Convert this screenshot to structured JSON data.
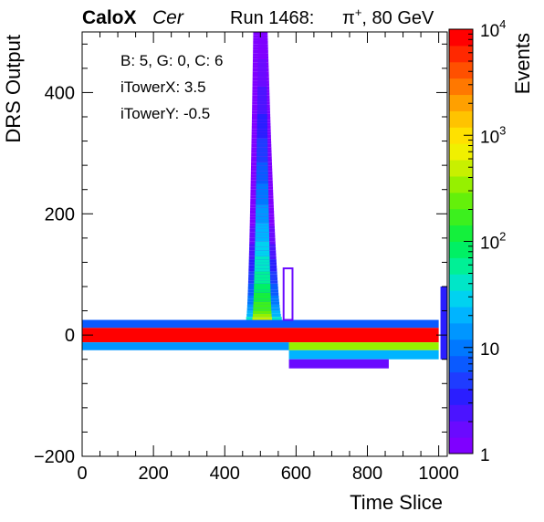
{
  "header": {
    "brand": "CaloX",
    "channel": "Cer",
    "run": "Run 1468:",
    "beam_particle": "π",
    "beam_charge": "+",
    "beam_energy": ", 80 GeV"
  },
  "annotations": [
    "B: 5, G: 0, C: 6",
    "iTowerX: 3.5",
    "iTowerY: -0.5"
  ],
  "chart_data": {
    "type": "heatmap",
    "xlabel": "Time Slice",
    "ylabel": "DRS Output",
    "zlabel": "Events",
    "xlim": [
      0,
      1024
    ],
    "ylim": [
      -200,
      500
    ],
    "x_ticks": [
      0,
      200,
      400,
      600,
      800,
      1000
    ],
    "x_tick_labels": [
      "0",
      "200",
      "400",
      "600",
      "800",
      "1000"
    ],
    "y_ticks": [
      -200,
      0,
      200,
      400
    ],
    "y_tick_labels": [
      "−200",
      "0",
      "200",
      "400"
    ],
    "z_scale": "log",
    "zlim": [
      1,
      10000
    ],
    "z_tick_labels": [
      {
        "value": 1,
        "base": "1",
        "exp": ""
      },
      {
        "value": 10,
        "base": "10",
        "exp": ""
      },
      {
        "value": 100,
        "base": "10",
        "exp": "2"
      },
      {
        "value": 1000,
        "base": "10",
        "exp": "3"
      },
      {
        "value": 10000,
        "base": "10",
        "exp": "4"
      }
    ],
    "palette": [
      "#7f00ff",
      "#6a0aff",
      "#4b14ff",
      "#2a1eff",
      "#1f3cff",
      "#0a5aff",
      "#0078ff",
      "#0096ff",
      "#00b4ff",
      "#00d2f0",
      "#00e6c8",
      "#00f096",
      "#00f064",
      "#14f03c",
      "#3cf01e",
      "#64f00a",
      "#96f000",
      "#c8f000",
      "#f0f000",
      "#ffe100",
      "#ffc300",
      "#ffa000",
      "#ff7800",
      "#ff5000",
      "#ff2800",
      "#ff0000"
    ],
    "bands": [
      {
        "x_range": [
          0,
          1000
        ],
        "y_range": [
          -12,
          12
        ],
        "events": 10000
      },
      {
        "x_range": [
          0,
          1000
        ],
        "y_range": [
          12,
          25
        ],
        "events": 8
      },
      {
        "x_range": [
          0,
          580
        ],
        "y_range": [
          -25,
          -12
        ],
        "events": 15
      },
      {
        "x_range": [
          580,
          1000
        ],
        "y_range": [
          -25,
          -12
        ],
        "events": 300
      },
      {
        "x_range": [
          580,
          1000
        ],
        "y_range": [
          -40,
          -25
        ],
        "events": 20
      },
      {
        "x_range": [
          580,
          860
        ],
        "y_range": [
          -55,
          -40
        ],
        "events": 2
      }
    ],
    "peak": {
      "x_center": 505,
      "y_range": [
        25,
        500
      ],
      "left_edge_y0": 460,
      "left_edge_y500": 480,
      "right_edge_y0": 560,
      "right_edge_y500": 520,
      "events_at_base": 500,
      "events_at_top": 1
    },
    "secondary_peak": {
      "x_range": [
        565,
        590
      ],
      "y_range": [
        25,
        110
      ],
      "events": 2
    },
    "end_spike": {
      "x_range": [
        1005,
        1024
      ],
      "y_range": [
        -40,
        80
      ],
      "events": 3
    }
  }
}
